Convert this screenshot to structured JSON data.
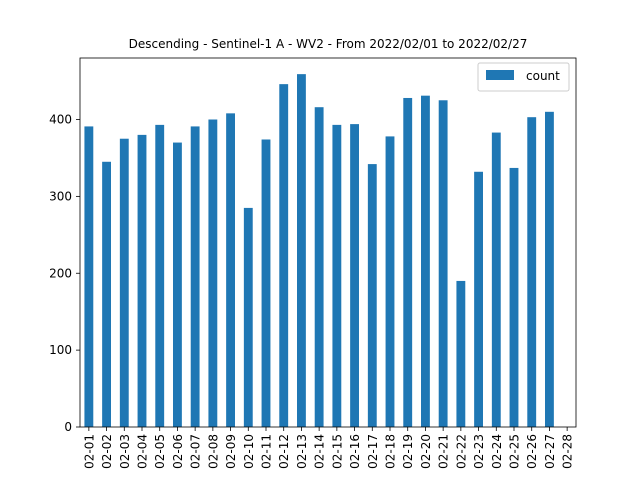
{
  "chart_data": {
    "type": "bar",
    "title": "Descending - Sentinel-1 A - WV2 - From 2022/02/01 to 2022/02/27",
    "xlabel": "",
    "ylabel": "",
    "ylim": [
      0,
      480
    ],
    "yticks": [
      0,
      100,
      200,
      300,
      400
    ],
    "categories": [
      "02-01",
      "02-02",
      "02-03",
      "02-04",
      "02-05",
      "02-06",
      "02-07",
      "02-08",
      "02-09",
      "02-10",
      "02-11",
      "02-12",
      "02-13",
      "02-14",
      "02-15",
      "02-16",
      "02-17",
      "02-18",
      "02-19",
      "02-20",
      "02-21",
      "02-22",
      "02-23",
      "02-24",
      "02-25",
      "02-26",
      "02-27",
      "02-28"
    ],
    "series": [
      {
        "name": "count",
        "color": "#1f77b4",
        "values": [
          391,
          345,
          375,
          380,
          393,
          370,
          391,
          400,
          408,
          285,
          374,
          446,
          459,
          416,
          393,
          394,
          342,
          378,
          428,
          431,
          425,
          190,
          332,
          383,
          337,
          403,
          410,
          null
        ]
      }
    ],
    "legend": "top-right",
    "grid": false
  }
}
